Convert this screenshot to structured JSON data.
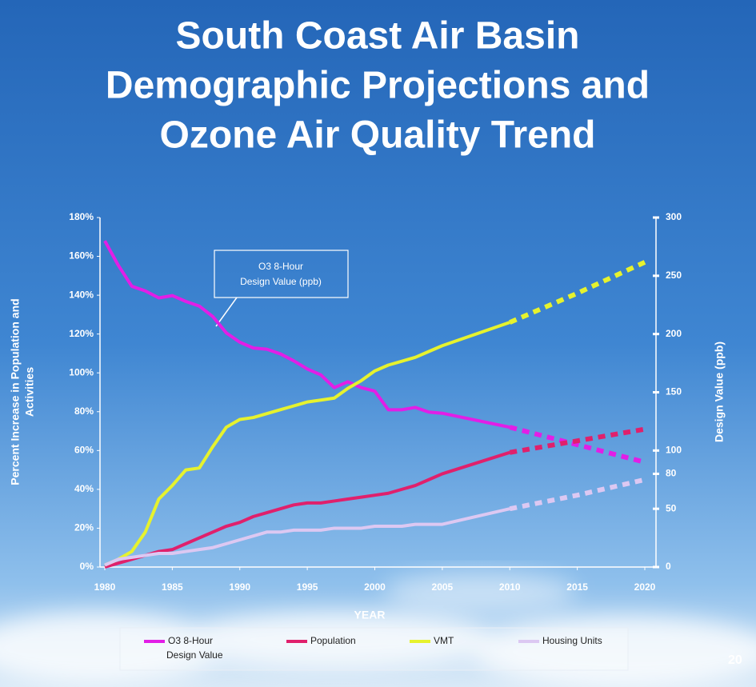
{
  "chart_data": {
    "type": "line",
    "title": [
      "South Coast Air Basin",
      "Demographic Projections and",
      "Ozone Air Quality Trend"
    ],
    "x_label": "YEAR",
    "y_label": [
      "Percent Increase in Population and",
      "Activities"
    ],
    "y2_label": "Design Value (ppb)",
    "annotation": [
      "O3 8-Hour",
      "Design Value (ppb)"
    ],
    "page_number": "20",
    "x": [
      1980,
      1981,
      1982,
      1983,
      1984,
      1985,
      1986,
      1987,
      1988,
      1989,
      1990,
      1991,
      1992,
      1993,
      1994,
      1995,
      1996,
      1997,
      1998,
      1999,
      2000,
      2001,
      2002,
      2003,
      2004,
      2005,
      2010,
      2015,
      2020
    ],
    "dashed_from": 2010,
    "xlim": [
      1980,
      2020
    ],
    "xticks": [
      1980,
      1985,
      1990,
      1995,
      2000,
      2005,
      2010,
      2015,
      2020
    ],
    "ylim": [
      0,
      180
    ],
    "yticks": [
      {
        "value": 0,
        "label": "0%"
      },
      {
        "value": 20,
        "label": "20%"
      },
      {
        "value": 40,
        "label": "40%"
      },
      {
        "value": 60,
        "label": "60%"
      },
      {
        "value": 80,
        "label": "80%"
      },
      {
        "value": 100,
        "label": "100%"
      },
      {
        "value": 120,
        "label": "120%"
      },
      {
        "value": 140,
        "label": "140%"
      },
      {
        "value": 160,
        "label": "160%"
      },
      {
        "value": 180,
        "label": "180%"
      }
    ],
    "y2lim": [
      0,
      300
    ],
    "y2ticks": [
      0,
      50,
      80,
      100,
      150,
      200,
      250,
      300
    ],
    "series": [
      {
        "name": [
          "O3 8-Hour",
          "Design Value"
        ],
        "color": "#e21ee6",
        "axis": "y2",
        "values": [
          280,
          259,
          241,
          237,
          231,
          233,
          228,
          224,
          215,
          201,
          193,
          188,
          187,
          183,
          177,
          170,
          165,
          154,
          159,
          154,
          151,
          135,
          135,
          137,
          133,
          132,
          120,
          105,
          90
        ]
      },
      {
        "name": "Population",
        "color": "#e0206c",
        "values": [
          0,
          2,
          4,
          6,
          8,
          9,
          12,
          15,
          18,
          21,
          23,
          26,
          28,
          30,
          32,
          33,
          33,
          34,
          35,
          36,
          37,
          38,
          40,
          42,
          45,
          48,
          59,
          65,
          71
        ]
      },
      {
        "name": "VMT",
        "color": "#e6f22e",
        "values": [
          1,
          4,
          8,
          18,
          35,
          42,
          50,
          51,
          62,
          72,
          76,
          77,
          79,
          81,
          83,
          85,
          86,
          87,
          92,
          96,
          101,
          104,
          106,
          108,
          111,
          114,
          126,
          141,
          157
        ]
      },
      {
        "name": "Housing Units",
        "color": "#dcc8f2",
        "values": [
          1,
          4,
          5,
          6,
          7,
          7,
          8,
          9,
          10,
          12,
          14,
          16,
          18,
          18,
          19,
          19,
          19,
          20,
          20,
          20,
          21,
          21,
          21,
          22,
          22,
          22,
          30,
          37,
          45
        ]
      }
    ]
  }
}
